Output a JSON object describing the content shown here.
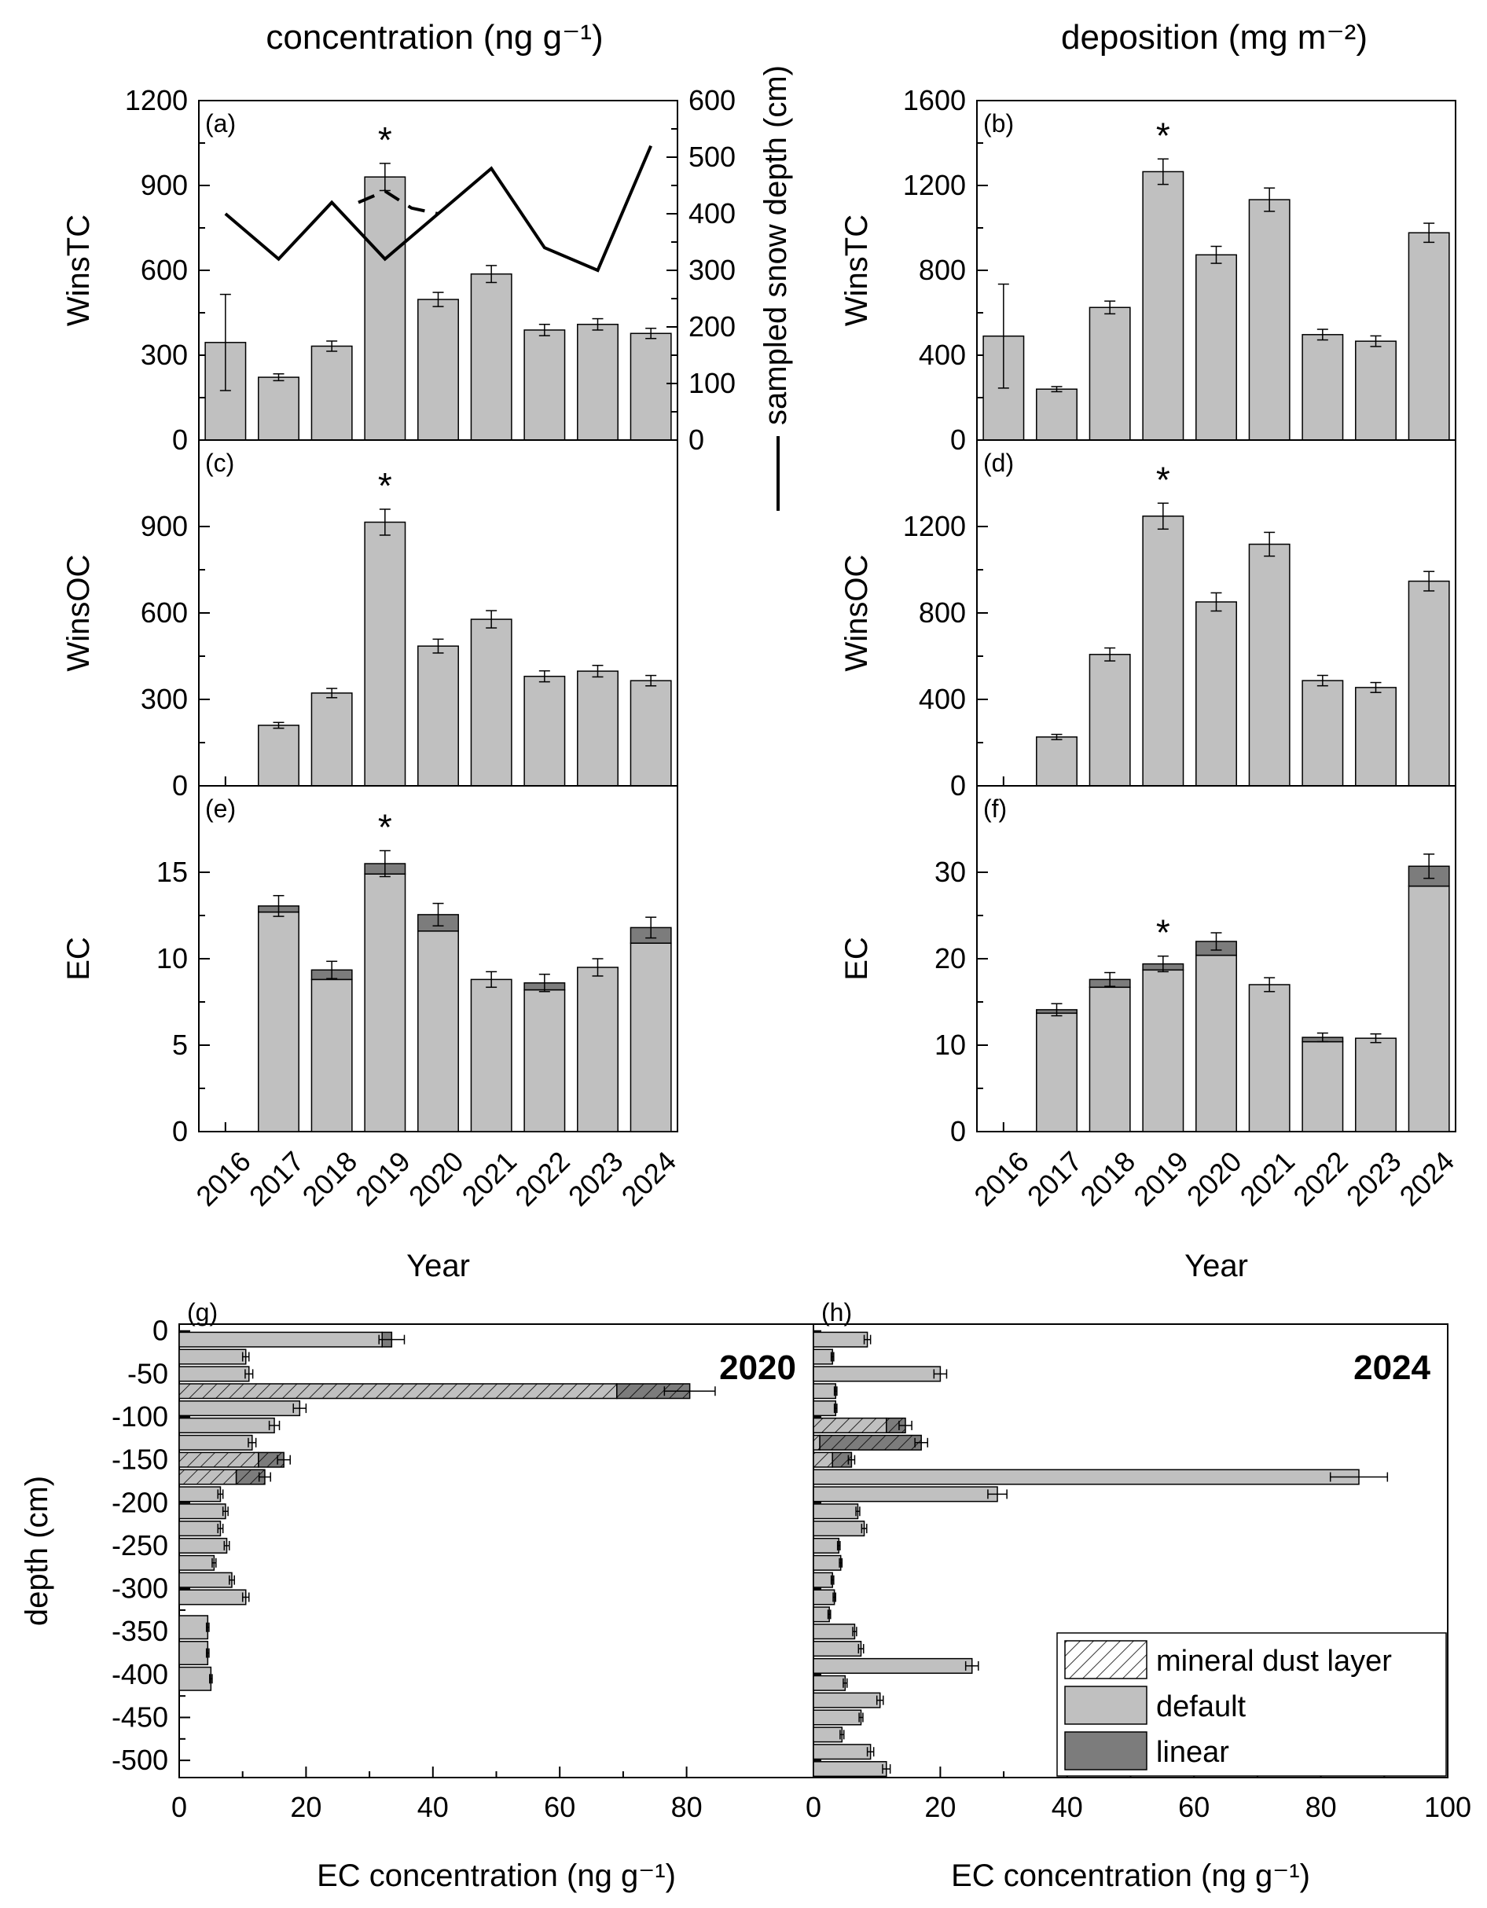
{
  "col_titles": {
    "left": "concentration (ng g⁻¹)",
    "right": "deposition (mg m⁻²)"
  },
  "colors": {
    "default": "#c0c0c0",
    "linear": "#7c7c7c",
    "axis": "#000000"
  },
  "chart_data": [
    {
      "id": "a",
      "type": "bar",
      "panel_label": "(a)",
      "ylabel": "WinsTC",
      "categories": [
        "2016",
        "2017",
        "2018",
        "2019",
        "2020",
        "2021",
        "2022",
        "2023",
        "2024"
      ],
      "values": [
        345,
        222,
        332,
        930,
        497,
        587,
        389,
        409,
        377
      ],
      "errors": [
        170,
        12,
        18,
        48,
        25,
        30,
        20,
        20,
        18
      ],
      "ylim": [
        0,
        1200
      ],
      "yticks": [
        0,
        300,
        600,
        900,
        1200
      ],
      "asterisk": "2019",
      "secondary_axis": {
        "label": "sampled snow depth (cm)",
        "ylim": [
          0,
          600
        ],
        "yticks": [
          0,
          100,
          200,
          300,
          400,
          500,
          600
        ],
        "snow_depth": [
          400,
          320,
          420,
          320,
          400,
          480,
          340,
          300,
          520
        ],
        "dashed_2019": [
          [
            2018.5,
            420
          ],
          [
            2019.0,
            440
          ],
          [
            2019.5,
            410
          ],
          [
            2020.0,
            400
          ]
        ]
      }
    },
    {
      "id": "b",
      "type": "bar",
      "panel_label": "(b)",
      "ylabel": "WinsTC",
      "categories": [
        "2016",
        "2017",
        "2018",
        "2019",
        "2020",
        "2021",
        "2022",
        "2023",
        "2024"
      ],
      "values": [
        490,
        240,
        625,
        1265,
        873,
        1133,
        497,
        466,
        977
      ],
      "errors": [
        245,
        12,
        30,
        60,
        40,
        55,
        25,
        25,
        45
      ],
      "ylim": [
        0,
        1600
      ],
      "yticks": [
        0,
        400,
        800,
        1200,
        1600
      ],
      "asterisk": "2019"
    },
    {
      "id": "c",
      "type": "bar",
      "panel_label": "(c)",
      "ylabel": "WinsOC",
      "categories": [
        "2016",
        "2017",
        "2018",
        "2019",
        "2020",
        "2021",
        "2022",
        "2023",
        "2024"
      ],
      "values": [
        null,
        210,
        322,
        915,
        485,
        578,
        380,
        398,
        365
      ],
      "errors": [
        null,
        10,
        16,
        45,
        24,
        30,
        19,
        20,
        18
      ],
      "ylim": [
        0,
        1200
      ],
      "yticks": [
        0,
        300,
        600,
        900
      ],
      "asterisk": "2019"
    },
    {
      "id": "d",
      "type": "bar",
      "panel_label": "(d)",
      "ylabel": "WinsOC",
      "categories": [
        "2016",
        "2017",
        "2018",
        "2019",
        "2020",
        "2021",
        "2022",
        "2023",
        "2024"
      ],
      "values": [
        null,
        226,
        608,
        1248,
        851,
        1118,
        487,
        455,
        947
      ],
      "errors": [
        null,
        12,
        30,
        60,
        42,
        55,
        24,
        23,
        45
      ],
      "ylim": [
        0,
        1600
      ],
      "yticks": [
        0,
        400,
        800,
        1200
      ],
      "asterisk": "2019"
    },
    {
      "id": "e",
      "type": "bar",
      "panel_label": "(e)",
      "ylabel": "EC",
      "xlabel": "Year",
      "categories": [
        "2016",
        "2017",
        "2018",
        "2019",
        "2020",
        "2021",
        "2022",
        "2023",
        "2024"
      ],
      "default": [
        null,
        12.7,
        8.8,
        14.9,
        11.6,
        8.8,
        8.2,
        9.5,
        10.9
      ],
      "linear": [
        null,
        0.35,
        0.55,
        0.6,
        0.95,
        0,
        0.4,
        0,
        0.9
      ],
      "errors": [
        null,
        0.6,
        0.5,
        0.75,
        0.65,
        0.45,
        0.5,
        0.5,
        0.6
      ],
      "ylim": [
        0,
        20
      ],
      "yticks": [
        0,
        5,
        10,
        15
      ],
      "asterisk": "2019"
    },
    {
      "id": "f",
      "type": "bar",
      "panel_label": "(f)",
      "ylabel": "EC",
      "xlabel": "Year",
      "categories": [
        "2016",
        "2017",
        "2018",
        "2019",
        "2020",
        "2021",
        "2022",
        "2023",
        "2024"
      ],
      "default": [
        null,
        13.7,
        16.7,
        18.7,
        20.4,
        17.0,
        10.4,
        10.8,
        28.4
      ],
      "linear": [
        null,
        0.4,
        0.9,
        0.7,
        1.6,
        0,
        0.5,
        0,
        2.3
      ],
      "errors": [
        null,
        0.7,
        0.8,
        0.9,
        1.0,
        0.8,
        0.5,
        0.5,
        1.4
      ],
      "ylim": [
        0,
        40
      ],
      "yticks": [
        0,
        10,
        20,
        30
      ],
      "asterisk": "2019"
    },
    {
      "id": "g",
      "type": "bar",
      "orientation": "horizontal",
      "panel_label": "(g)",
      "year_label": "2020",
      "ylabel": "depth (cm)",
      "xlabel": "EC concentration (ng g⁻¹)",
      "depth": [
        0,
        -20,
        -40,
        -60,
        -80,
        -100,
        -120,
        -140,
        -160,
        -180,
        -200,
        -220,
        -240,
        -260,
        -280,
        -300,
        -330,
        -360,
        -390
      ],
      "default": [
        32,
        10.5,
        11,
        69,
        19,
        15,
        11.5,
        12.5,
        9,
        6.5,
        7.3,
        6.5,
        7.5,
        5.5,
        8.3,
        10.5,
        4.5,
        4.5,
        5
      ],
      "linear": [
        1.5,
        0,
        0,
        11.5,
        0,
        0,
        0,
        4,
        4.5,
        0,
        0,
        0,
        0,
        0,
        0,
        0,
        0,
        0,
        0
      ],
      "errors": [
        2,
        0.5,
        0.6,
        4,
        1,
        0.8,
        0.6,
        1,
        0.9,
        0.4,
        0.4,
        0.4,
        0.4,
        0.3,
        0.4,
        0.5,
        0.2,
        0.2,
        0.2
      ],
      "dust": [
        false,
        false,
        false,
        true,
        false,
        false,
        false,
        true,
        true,
        false,
        false,
        false,
        false,
        false,
        false,
        false,
        false,
        false,
        false
      ],
      "band_height": [
        20,
        20,
        20,
        20,
        20,
        20,
        20,
        20,
        20,
        20,
        20,
        20,
        20,
        20,
        20,
        20,
        30,
        30,
        30
      ],
      "xlim": [
        0,
        100
      ],
      "xticks": [
        0,
        20,
        40,
        60,
        80
      ],
      "ylim": [
        -520,
        8
      ],
      "yticks": [
        0,
        -50,
        -100,
        -150,
        -200,
        -250,
        -300,
        -350,
        -400,
        -450,
        -500
      ]
    },
    {
      "id": "h",
      "type": "bar",
      "orientation": "horizontal",
      "panel_label": "(h)",
      "year_label": "2024",
      "xlabel": "EC concentration (ng g⁻¹)",
      "depth": [
        0,
        -20,
        -40,
        -60,
        -80,
        -100,
        -120,
        -140,
        -160,
        -180,
        -200,
        -220,
        -240,
        -260,
        -280,
        -300,
        -320,
        -340,
        -360,
        -380,
        -400,
        -420,
        -440,
        -460,
        -480,
        -500
      ],
      "default": [
        8.5,
        3,
        20,
        3.5,
        3.5,
        11.5,
        1,
        3,
        86,
        29,
        7,
        8,
        4,
        4.3,
        3,
        3.3,
        2.5,
        6.5,
        7.5,
        25,
        5,
        10.5,
        7.5,
        4.5,
        9,
        11.5
      ],
      "linear": [
        0,
        0,
        0,
        0,
        0,
        3,
        16,
        3,
        0,
        0,
        0,
        0,
        0,
        0,
        0,
        0,
        0,
        0,
        0,
        0,
        0,
        0,
        0,
        0,
        0,
        0
      ],
      "errors": [
        0.5,
        0.2,
        1,
        0.2,
        0.2,
        1,
        1,
        0.5,
        4.5,
        1.5,
        0.3,
        0.4,
        0.2,
        0.2,
        0.2,
        0.2,
        0.2,
        0.3,
        0.4,
        1,
        0.3,
        0.5,
        0.3,
        0.3,
        0.5,
        0.6
      ],
      "dust": [
        false,
        false,
        false,
        false,
        false,
        true,
        true,
        true,
        false,
        false,
        false,
        false,
        false,
        false,
        false,
        false,
        false,
        false,
        false,
        false,
        false,
        false,
        false,
        false,
        false,
        false
      ],
      "band_height": [
        20,
        20,
        20,
        20,
        20,
        20,
        20,
        20,
        20,
        20,
        20,
        20,
        20,
        20,
        20,
        20,
        20,
        20,
        20,
        20,
        20,
        20,
        20,
        20,
        20,
        20
      ],
      "xlim": [
        0,
        100
      ],
      "xticks": [
        0,
        20,
        40,
        60,
        80,
        100
      ],
      "ylim": [
        -520,
        8
      ]
    }
  ],
  "legend": {
    "items": [
      {
        "label": "mineral dust layer",
        "style": "hatch"
      },
      {
        "label": "default",
        "style": "default"
      },
      {
        "label": "linear",
        "style": "linear"
      }
    ]
  }
}
